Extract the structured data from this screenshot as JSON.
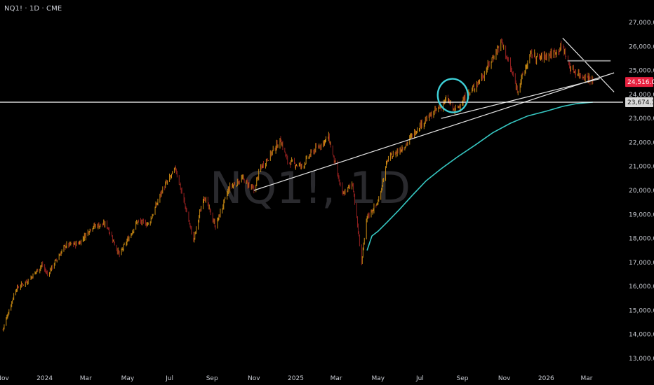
{
  "header": {
    "symbol_line": "NQ1! · 1D · CME"
  },
  "watermark": "NQ1!, 1D",
  "colors": {
    "background": "#000000",
    "bar_up": "#c98a12",
    "bar_down": "#8f1f1f",
    "ma_line": "#36c7c2",
    "trend_lines": "#e6e6e6",
    "horizontal_line": "#ffffff",
    "price_tag_bg": "#e8213f",
    "level_tag_bg": "#d8d8d8",
    "circle_annotation": "#3ecfd6"
  },
  "price_tag": {
    "label": "24,516.0"
  },
  "level_tag": {
    "label": "23,674.3"
  },
  "chart_data": {
    "type": "ohlc",
    "y_axis": {
      "ticks": [
        "27,000.0",
        "26,000.0",
        "25,000.0",
        "24,000.0",
        "23,000.0",
        "22,000.0",
        "21,000.0",
        "20,000.0",
        "19,000.0",
        "18,000.0",
        "17,000.0",
        "16,000.0",
        "15,000.0",
        "14,000.0",
        "13,000.0"
      ],
      "tick_values": [
        27000,
        26000,
        25000,
        24000,
        23000,
        22000,
        21000,
        20000,
        19000,
        18000,
        17000,
        16000,
        15000,
        14000,
        13000
      ],
      "range": [
        12700,
        27500
      ]
    },
    "x_axis": {
      "ticks": [
        "Nov",
        "2024",
        "Mar",
        "May",
        "Jul",
        "Sep",
        "Nov",
        "2025",
        "Mar",
        "May",
        "Jul",
        "Sep",
        "Nov",
        "2026",
        "Mar"
      ],
      "tick_dates": [
        "2023-11-01",
        "2024-01-01",
        "2024-03-01",
        "2024-05-01",
        "2024-07-01",
        "2024-09-01",
        "2024-11-01",
        "2025-01-01",
        "2025-03-01",
        "2025-05-01",
        "2025-07-01",
        "2025-09-01",
        "2025-11-01",
        "2026-01-01",
        "2026-03-01"
      ],
      "range": [
        "2023-11-01",
        "2026-04-15"
      ]
    },
    "series": [
      {
        "kind": "price_path",
        "points": [
          [
            "2023-11-01",
            14200
          ],
          [
            "2023-11-20",
            15900
          ],
          [
            "2023-12-10",
            16300
          ],
          [
            "2023-12-28",
            16900
          ],
          [
            "2024-01-05",
            16500
          ],
          [
            "2024-01-31",
            17700
          ],
          [
            "2024-02-20",
            17800
          ],
          [
            "2024-03-10",
            18500
          ],
          [
            "2024-03-31",
            18600
          ],
          [
            "2024-04-19",
            17300
          ],
          [
            "2024-05-15",
            18700
          ],
          [
            "2024-06-01",
            18600
          ],
          [
            "2024-06-20",
            20000
          ],
          [
            "2024-07-10",
            20900
          ],
          [
            "2024-07-25",
            19200
          ],
          [
            "2024-08-05",
            17900
          ],
          [
            "2024-08-20",
            19800
          ],
          [
            "2024-09-06",
            18500
          ],
          [
            "2024-09-26",
            20100
          ],
          [
            "2024-10-15",
            20500
          ],
          [
            "2024-11-01",
            20000
          ],
          [
            "2024-11-10",
            20900
          ],
          [
            "2024-12-10",
            22100
          ],
          [
            "2024-12-20",
            21200
          ],
          [
            "2025-01-10",
            21000
          ],
          [
            "2025-01-25",
            21600
          ],
          [
            "2025-02-18",
            22200
          ],
          [
            "2025-03-10",
            19800
          ],
          [
            "2025-03-25",
            20300
          ],
          [
            "2025-04-07",
            17000
          ],
          [
            "2025-04-15",
            18900
          ],
          [
            "2025-05-01",
            19500
          ],
          [
            "2025-05-15",
            21300
          ],
          [
            "2025-06-10",
            21900
          ],
          [
            "2025-06-30",
            22700
          ],
          [
            "2025-07-20",
            23200
          ],
          [
            "2025-08-10",
            23800
          ],
          [
            "2025-08-20",
            23300
          ],
          [
            "2025-09-10",
            24000
          ],
          [
            "2025-10-01",
            24800
          ],
          [
            "2025-10-28",
            26200
          ],
          [
            "2025-11-20",
            24200
          ],
          [
            "2025-12-10",
            25700
          ],
          [
            "2025-12-20",
            25500
          ],
          [
            "2026-01-10",
            25700
          ],
          [
            "2026-01-25",
            26000
          ],
          [
            "2026-02-05",
            25100
          ],
          [
            "2026-02-20",
            24800
          ],
          [
            "2026-03-05",
            24700
          ],
          [
            "2026-03-10",
            24516
          ]
        ]
      },
      {
        "kind": "moving_average",
        "points": [
          [
            "2025-04-15",
            17500
          ],
          [
            "2025-04-22",
            18100
          ],
          [
            "2025-05-01",
            18300
          ],
          [
            "2025-05-15",
            18700
          ],
          [
            "2025-06-01",
            19200
          ],
          [
            "2025-06-20",
            19800
          ],
          [
            "2025-07-10",
            20400
          ],
          [
            "2025-08-01",
            20900
          ],
          [
            "2025-08-25",
            21400
          ],
          [
            "2025-09-20",
            21900
          ],
          [
            "2025-10-15",
            22400
          ],
          [
            "2025-11-10",
            22800
          ],
          [
            "2025-12-05",
            23100
          ],
          [
            "2026-01-01",
            23300
          ],
          [
            "2026-01-25",
            23500
          ],
          [
            "2026-02-15",
            23620
          ],
          [
            "2026-03-10",
            23674
          ]
        ]
      }
    ],
    "drawings": [
      {
        "kind": "trend_line",
        "from": [
          "2024-11-01",
          20000
        ],
        "to": [
          "2026-04-10",
          24900
        ]
      },
      {
        "kind": "trend_line",
        "from": [
          "2025-08-01",
          23000
        ],
        "to": [
          "2026-03-20",
          24650
        ]
      },
      {
        "kind": "trend_line",
        "from": [
          "2026-01-25",
          26350
        ],
        "to": [
          "2026-04-10",
          24100
        ]
      },
      {
        "kind": "segment",
        "from": [
          "2026-02-01",
          25400
        ],
        "to": [
          "2026-04-05",
          25400
        ]
      },
      {
        "kind": "horizontal_line",
        "value": 23674.3
      },
      {
        "kind": "ellipse",
        "center": [
          "2025-08-18",
          23950
        ],
        "radius_days": 22,
        "radius_value": 700
      }
    ],
    "last_price": 24516.0,
    "horizontal_level": 23674.3,
    "grid": false,
    "legend": "none"
  }
}
